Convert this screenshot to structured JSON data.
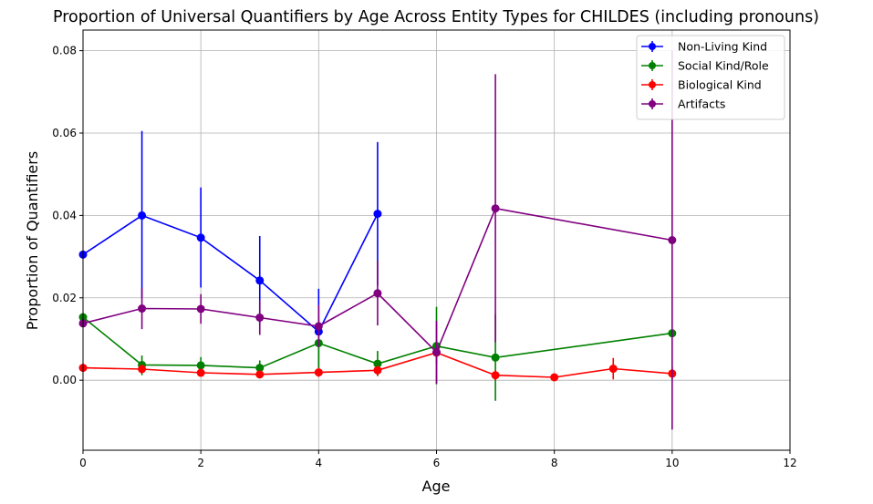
{
  "chart_data": {
    "type": "line",
    "title": "Proportion of Universal Quantifiers by Age Across Entity Types for CHILDES (including pronouns)",
    "xlabel": "Age",
    "ylabel": "Proportion of Quantifiers",
    "xlim": [
      0,
      12
    ],
    "ylim": [
      -0.017,
      0.085
    ],
    "xticks": [
      0,
      2,
      4,
      6,
      8,
      10,
      12
    ],
    "yticks": [
      0.0,
      0.02,
      0.04,
      0.06,
      0.08
    ],
    "xtick_labels": [
      "0",
      "2",
      "4",
      "6",
      "8",
      "10",
      "12"
    ],
    "ytick_labels": [
      "0.00",
      "0.02",
      "0.04",
      "0.06",
      "0.08"
    ],
    "grid": true,
    "legend_position": "top-right",
    "series": [
      {
        "name": "Non-Living Kind",
        "color": "#0000ff",
        "points": [
          {
            "x": 0,
            "y": 0.0305,
            "lo": 0.0305,
            "hi": 0.0305
          },
          {
            "x": 1,
            "y": 0.04,
            "lo": 0.02,
            "hi": 0.0605
          },
          {
            "x": 2,
            "y": 0.0346,
            "lo": 0.0225,
            "hi": 0.0468
          },
          {
            "x": 3,
            "y": 0.0242,
            "lo": 0.0135,
            "hi": 0.035
          },
          {
            "x": 4,
            "y": 0.0118,
            "lo": 0.0015,
            "hi": 0.0222
          },
          {
            "x": 5,
            "y": 0.0404,
            "lo": 0.023,
            "hi": 0.0578
          }
        ]
      },
      {
        "name": "Social Kind/Role",
        "color": "#008000",
        "points": [
          {
            "x": 0,
            "y": 0.0153,
            "lo": 0.0153,
            "hi": 0.0153
          },
          {
            "x": 1,
            "y": 0.0037,
            "lo": 0.0012,
            "hi": 0.006
          },
          {
            "x": 2,
            "y": 0.0036,
            "lo": 0.0016,
            "hi": 0.0056
          },
          {
            "x": 3,
            "y": 0.003,
            "lo": 0.0012,
            "hi": 0.0048
          },
          {
            "x": 4,
            "y": 0.009,
            "lo": 0.003,
            "hi": 0.015
          },
          {
            "x": 5,
            "y": 0.004,
            "lo": 0.001,
            "hi": 0.0071
          },
          {
            "x": 6,
            "y": 0.0083,
            "lo": -0.001,
            "hi": 0.0178
          },
          {
            "x": 7,
            "y": 0.0055,
            "lo": -0.005,
            "hi": 0.016
          },
          {
            "x": 10,
            "y": 0.0114,
            "lo": 0.0114,
            "hi": 0.0114
          }
        ]
      },
      {
        "name": "Biological Kind",
        "color": "#ff0000",
        "points": [
          {
            "x": 0,
            "y": 0.003,
            "lo": 0.003,
            "hi": 0.003
          },
          {
            "x": 1,
            "y": 0.0027,
            "lo": 0.0016,
            "hi": 0.0038
          },
          {
            "x": 2,
            "y": 0.0018,
            "lo": 0.001,
            "hi": 0.0026
          },
          {
            "x": 3,
            "y": 0.0014,
            "lo": 0.0006,
            "hi": 0.0022
          },
          {
            "x": 4,
            "y": 0.0019,
            "lo": 0.0008,
            "hi": 0.003
          },
          {
            "x": 5,
            "y": 0.0024,
            "lo": 0.0012,
            "hi": 0.0036
          },
          {
            "x": 6,
            "y": 0.0067,
            "lo": 0.004,
            "hi": 0.0094
          },
          {
            "x": 7,
            "y": 0.0012,
            "lo": 0.0,
            "hi": 0.0024
          },
          {
            "x": 8,
            "y": 0.0007,
            "lo": 0.0007,
            "hi": 0.0007
          },
          {
            "x": 9,
            "y": 0.0028,
            "lo": 0.0002,
            "hi": 0.0054
          },
          {
            "x": 10,
            "y": 0.0016,
            "lo": 0.0,
            "hi": 0.0032
          }
        ]
      },
      {
        "name": "Artifacts",
        "color": "#800080",
        "points": [
          {
            "x": 0,
            "y": 0.0138,
            "lo": 0.0138,
            "hi": 0.0138
          },
          {
            "x": 1,
            "y": 0.0174,
            "lo": 0.0124,
            "hi": 0.0224
          },
          {
            "x": 2,
            "y": 0.0173,
            "lo": 0.0137,
            "hi": 0.0209
          },
          {
            "x": 3,
            "y": 0.0152,
            "lo": 0.011,
            "hi": 0.0194
          },
          {
            "x": 4,
            "y": 0.0131,
            "lo": 0.008,
            "hi": 0.0182
          },
          {
            "x": 5,
            "y": 0.0211,
            "lo": 0.0133,
            "hi": 0.029
          },
          {
            "x": 6,
            "y": 0.0068,
            "lo": -0.0008,
            "hi": 0.0144
          },
          {
            "x": 7,
            "y": 0.0417,
            "lo": 0.0092,
            "hi": 0.0743
          },
          {
            "x": 10,
            "y": 0.034,
            "lo": -0.012,
            "hi": 0.08
          }
        ]
      }
    ]
  }
}
